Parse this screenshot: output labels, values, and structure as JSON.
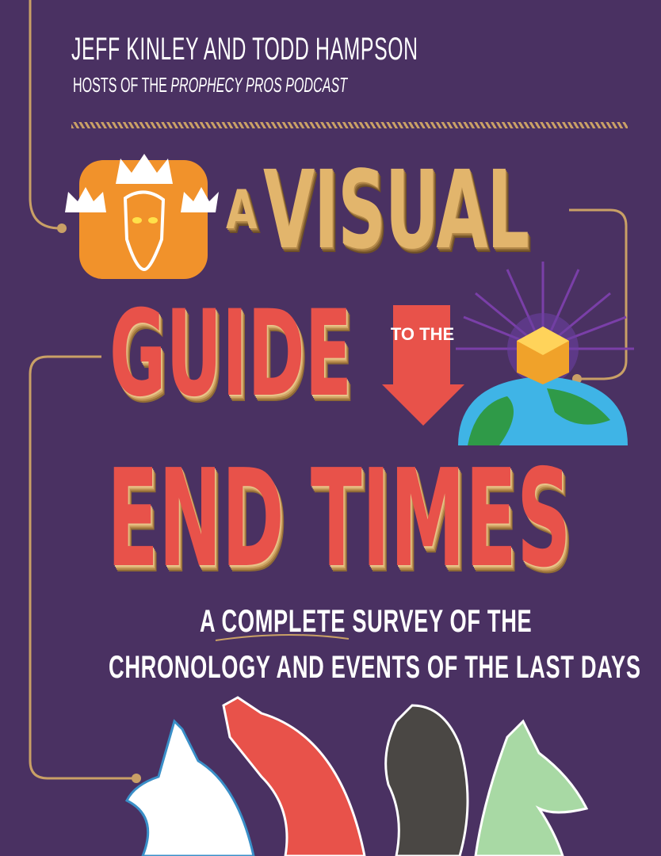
{
  "cover": {
    "authors": "JEFF KINLEY AND TODD HAMPSON",
    "hosts_prefix": "HOSTS OF THE ",
    "hosts_podcast": "PROPHECY PROS PODCAST",
    "title": {
      "a": "A",
      "visual": "VISUAL",
      "guide": "GUIDE",
      "to_the": "TO THE",
      "end_times": "END TIMES"
    },
    "subtitle_line1": "A COMPLETE SURVEY OF THE",
    "subtitle_line2": "CHRONOLOGY AND EVENTS OF THE LAST DAYS"
  },
  "colors": {
    "background": "#4a3162",
    "gold": "#e2b56c",
    "red": "#e8524a",
    "orange_badge": "#f1922b",
    "earth_blue": "#3fb4e6",
    "earth_green": "#2f9a48",
    "horse_white": "#ffffff",
    "horse_red": "#e8524a",
    "horse_black": "#4a4744",
    "horse_pale_green": "#a8d9a4"
  },
  "icons": [
    "crowned-christ-badge-icon",
    "down-arrow-icon",
    "earth-with-cube-icon",
    "white-horse-icon",
    "red-horse-icon",
    "black-horse-icon",
    "pale-horse-icon"
  ]
}
